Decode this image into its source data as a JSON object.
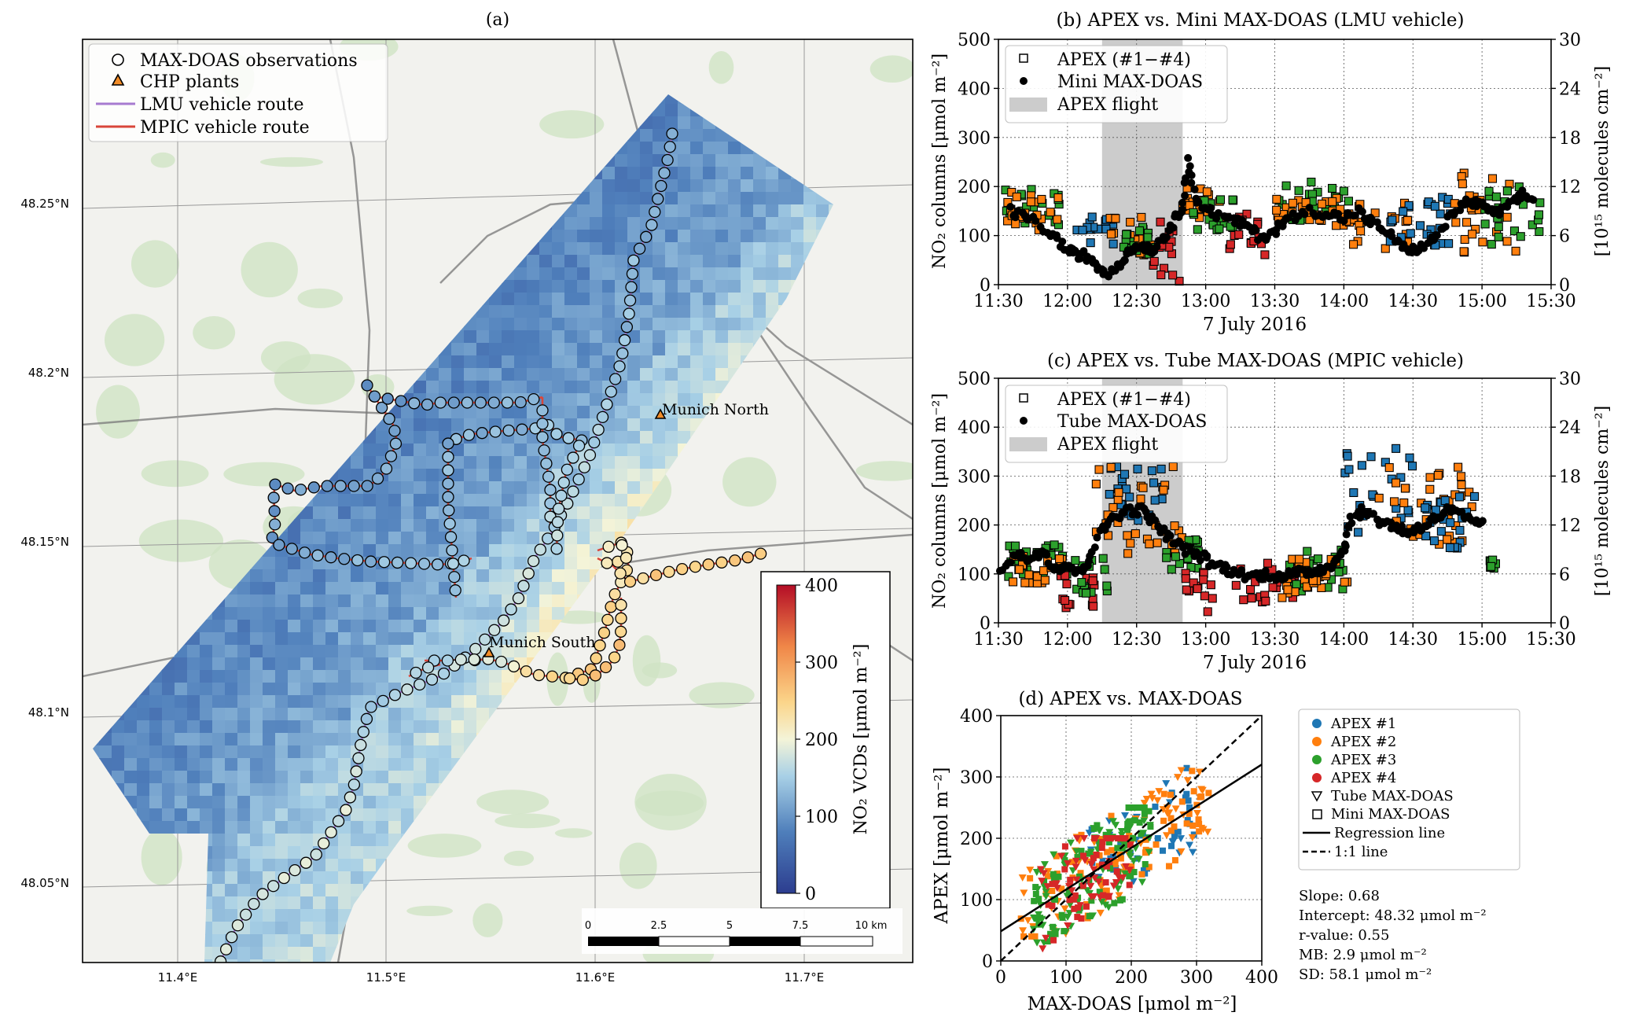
{
  "panel_a": {
    "title": "(a)",
    "legend": {
      "obs": "MAX-DOAS observations",
      "chp": "CHP plants",
      "lmu": "LMU vehicle route",
      "mpic": "MPIC vehicle route"
    },
    "colors": {
      "lmu": "#a77bd0",
      "mpic": "#d9463a",
      "chp": "#f28c28"
    },
    "lat_ticks": [
      "48.25°N",
      "48.2°N",
      "48.15°N",
      "48.1°N",
      "48.05°N"
    ],
    "lon_ticks": [
      "11.4°E",
      "11.5°E",
      "11.6°E",
      "11.7°E"
    ],
    "plants": [
      {
        "label": "Munich North",
        "lon": 11.632,
        "lat": 48.187
      },
      {
        "label": "Munich South",
        "lon": 11.55,
        "lat": 48.118
      }
    ],
    "colorbar": {
      "label": "NO₂ VCDs [μmol m⁻²]",
      "ticks": [
        "0",
        "100",
        "200",
        "300",
        "400"
      ]
    },
    "scalebar": {
      "ticks": [
        "0",
        "2.5",
        "5",
        "7.5",
        "10 km"
      ]
    }
  },
  "panel_b": {
    "title": "(b) APEX vs. Mini MAX-DOAS (LMU vehicle)",
    "ylabel": "NO₂ columns [μmol m⁻²]",
    "ylabel_right": "[10¹⁵ molecules cm⁻²]",
    "xlabel": "7 July 2016",
    "legend": {
      "apex": "APEX (#1−#4)",
      "maxdoas": "Mini MAX-DOAS",
      "flight": "APEX flight"
    }
  },
  "panel_c": {
    "title": "(c) APEX vs. Tube MAX-DOAS (MPIC vehicle)",
    "ylabel": "NO₂ columns [μmol m⁻²]",
    "ylabel_right": "[10¹⁵ molecules cm⁻²]",
    "xlabel": "7 July 2016",
    "legend": {
      "apex": "APEX (#1−#4)",
      "maxdoas": "Tube MAX-DOAS",
      "flight": "APEX flight"
    }
  },
  "panel_d": {
    "title": "(d) APEX vs. MAX-DOAS",
    "xlabel": "MAX-DOAS [μmol m⁻²]",
    "ylabel": "APEX [μmol m⁻²]",
    "legend": [
      "APEX #1",
      "APEX #2",
      "APEX #3",
      "APEX #4",
      "Tube MAX-DOAS",
      "Mini MAX-DOAS",
      "Regression line",
      "1:1 line"
    ],
    "stats": [
      "Slope: 0.68",
      "Intercept: 48.32 μmol m⁻²",
      "r-value: 0.55",
      "MB: 2.9 μmol m⁻²",
      "SD: 58.1 μmol m⁻²"
    ]
  },
  "chart_data": [
    {
      "type": "heatmap",
      "id": "map",
      "lon_range": [
        11.37,
        11.75
      ],
      "lat_range": [
        48.027,
        48.29
      ],
      "value_range": [
        0,
        400
      ]
    },
    {
      "type": "scatter",
      "id": "b",
      "x_ticks": [
        "11:30",
        "12:00",
        "12:30",
        "13:00",
        "13:30",
        "14:00",
        "14:30",
        "15:00",
        "15:30"
      ],
      "x_range_hours": [
        11.5,
        15.5
      ],
      "ylim": [
        0,
        500
      ],
      "y_ticks": [
        0,
        100,
        200,
        300,
        400,
        500
      ],
      "y_right_ticks": [
        0,
        6,
        12,
        18,
        24,
        30
      ],
      "flight_span": [
        "12:15",
        "12:50"
      ],
      "series_maxdoas": {
        "name": "Mini MAX-DOAS",
        "segments": [
          [
            11.58,
            150
          ],
          [
            11.72,
            135
          ],
          [
            11.88,
            105
          ],
          [
            11.98,
            75
          ],
          [
            12.05,
            62
          ],
          [
            12.12,
            60
          ],
          [
            12.2,
            45
          ],
          [
            12.28,
            20
          ],
          [
            12.38,
            45
          ],
          [
            12.45,
            70
          ],
          [
            12.55,
            80
          ],
          [
            12.62,
            70
          ],
          [
            12.7,
            100
          ],
          [
            12.78,
            130
          ],
          [
            12.83,
            160
          ],
          [
            12.88,
            250
          ],
          [
            12.93,
            170
          ],
          [
            13.05,
            145
          ],
          [
            13.2,
            130
          ],
          [
            13.3,
            120
          ],
          [
            13.4,
            95
          ],
          [
            13.5,
            110
          ],
          [
            13.6,
            135
          ],
          [
            13.75,
            150
          ],
          [
            13.9,
            145
          ],
          [
            14.0,
            135
          ],
          [
            14.1,
            150
          ],
          [
            14.2,
            125
          ],
          [
            14.3,
            110
          ],
          [
            14.4,
            80
          ],
          [
            14.5,
            70
          ],
          [
            14.6,
            80
          ],
          [
            14.7,
            110
          ],
          [
            14.8,
            150
          ],
          [
            14.9,
            170
          ],
          [
            15.0,
            160
          ],
          [
            15.1,
            145
          ],
          [
            15.2,
            160
          ],
          [
            15.3,
            185
          ],
          [
            15.38,
            170
          ]
        ],
        "spread": 18
      },
      "series_apex": {
        "name": "APEX (#1−#4)",
        "groups": [
          {
            "color": "#2ca02c",
            "x": [
              11.55,
              11.95
            ],
            "y": [
              120,
              195
            ]
          },
          {
            "color": "#ff7f0e",
            "x": [
              11.55,
              11.95
            ],
            "y": [
              110,
              190
            ]
          },
          {
            "color": "#1f77b4",
            "x": [
              12.05,
              12.35
            ],
            "y": [
              80,
              140
            ]
          },
          {
            "color": "#ff7f0e",
            "x": [
              12.3,
              12.6
            ],
            "y": [
              60,
              140
            ]
          },
          {
            "color": "#2ca02c",
            "x": [
              12.4,
              12.65
            ],
            "y": [
              50,
              120
            ]
          },
          {
            "color": "#d62728",
            "x": [
              12.62,
              12.82
            ],
            "y": [
              5,
              130
            ]
          },
          {
            "color": "#ff7f0e",
            "x": [
              12.8,
              13.1
            ],
            "y": [
              120,
              200
            ]
          },
          {
            "color": "#2ca02c",
            "x": [
              12.9,
              13.2
            ],
            "y": [
              110,
              180
            ]
          },
          {
            "color": "#d62728",
            "x": [
              13.15,
              13.45
            ],
            "y": [
              60,
              150
            ]
          },
          {
            "color": "#2ca02c",
            "x": [
              13.5,
              14.05
            ],
            "y": [
              130,
              210
            ]
          },
          {
            "color": "#ff7f0e",
            "x": [
              13.5,
              14.0
            ],
            "y": [
              120,
              180
            ]
          },
          {
            "color": "#ff7f0e",
            "x": [
              14.0,
              14.5
            ],
            "y": [
              70,
              170
            ]
          },
          {
            "color": "#1f77b4",
            "x": [
              14.3,
              14.8
            ],
            "y": [
              80,
              180
            ]
          },
          {
            "color": "#ff7f0e",
            "x": [
              14.8,
              15.25
            ],
            "y": [
              60,
              230
            ]
          },
          {
            "color": "#2ca02c",
            "x": [
              15.0,
              15.42
            ],
            "y": [
              60,
              200
            ]
          }
        ]
      }
    },
    {
      "type": "scatter",
      "id": "c",
      "x_ticks": [
        "11:30",
        "12:00",
        "12:30",
        "13:00",
        "13:30",
        "14:00",
        "14:30",
        "15:00",
        "15:30"
      ],
      "x_range_hours": [
        11.5,
        15.5
      ],
      "ylim": [
        0,
        500
      ],
      "y_ticks": [
        0,
        100,
        200,
        300,
        400,
        500
      ],
      "y_right_ticks": [
        0,
        6,
        12,
        18,
        24,
        30
      ],
      "flight_span": [
        "12:15",
        "12:50"
      ],
      "series_maxdoas": {
        "name": "Tube MAX-DOAS",
        "segments": [
          [
            11.52,
            110
          ],
          [
            11.62,
            140
          ],
          [
            11.72,
            130
          ],
          [
            11.82,
            150
          ],
          [
            11.92,
            110
          ],
          [
            12.0,
            120
          ],
          [
            12.08,
            100
          ],
          [
            12.15,
            130
          ],
          [
            12.25,
            190
          ],
          [
            12.35,
            220
          ],
          [
            12.45,
            230
          ],
          [
            12.55,
            230
          ],
          [
            12.65,
            200
          ],
          [
            12.75,
            170
          ],
          [
            12.85,
            150
          ],
          [
            12.95,
            140
          ],
          [
            13.05,
            120
          ],
          [
            13.15,
            110
          ],
          [
            13.25,
            100
          ],
          [
            13.35,
            95
          ],
          [
            13.45,
            100
          ],
          [
            13.55,
            95
          ],
          [
            13.65,
            100
          ],
          [
            13.75,
            105
          ],
          [
            13.85,
            110
          ],
          [
            13.95,
            130
          ],
          [
            14.0,
            150
          ],
          [
            14.05,
            210
          ],
          [
            14.15,
            230
          ],
          [
            14.25,
            210
          ],
          [
            14.35,
            200
          ],
          [
            14.45,
            185
          ],
          [
            14.55,
            195
          ],
          [
            14.65,
            210
          ],
          [
            14.75,
            230
          ],
          [
            14.85,
            220
          ],
          [
            14.95,
            200
          ],
          [
            15.02,
            210
          ]
        ],
        "spread": 20
      },
      "series_apex": {
        "name": "APEX (#1−#4)",
        "groups": [
          {
            "color": "#2ca02c",
            "x": [
              11.55,
              12.0
            ],
            "y": [
              90,
              160
            ]
          },
          {
            "color": "#ff7f0e",
            "x": [
              11.6,
              12.0
            ],
            "y": [
              80,
              140
            ]
          },
          {
            "color": "#d62728",
            "x": [
              11.95,
              12.2
            ],
            "y": [
              30,
              110
            ]
          },
          {
            "color": "#2ca02c",
            "x": [
              12.05,
              12.3
            ],
            "y": [
              60,
              140
            ]
          },
          {
            "color": "#1f77b4",
            "x": [
              12.3,
              12.7
            ],
            "y": [
              200,
              320
            ]
          },
          {
            "color": "#ff7f0e",
            "x": [
              12.2,
              12.85
            ],
            "y": [
              140,
              330
            ]
          },
          {
            "color": "#2ca02c",
            "x": [
              12.7,
              12.95
            ],
            "y": [
              100,
              180
            ]
          },
          {
            "color": "#d62728",
            "x": [
              12.85,
              13.05
            ],
            "y": [
              10,
              110
            ]
          },
          {
            "color": "#d62728",
            "x": [
              13.2,
              13.65
            ],
            "y": [
              40,
              130
            ]
          },
          {
            "color": "#2ca02c",
            "x": [
              13.6,
              14.0
            ],
            "y": [
              60,
              150
            ]
          },
          {
            "color": "#ff7f0e",
            "x": [
              13.55,
              14.05
            ],
            "y": [
              50,
              140
            ]
          },
          {
            "color": "#1f77b4",
            "x": [
              14.0,
              14.5
            ],
            "y": [
              180,
              360
            ]
          },
          {
            "color": "#ff7f0e",
            "x": [
              14.2,
              14.95
            ],
            "y": [
              150,
              320
            ]
          },
          {
            "color": "#1f77b4",
            "x": [
              14.55,
              14.95
            ],
            "y": [
              150,
              260
            ]
          },
          {
            "color": "#2ca02c",
            "x": [
              15.05,
              15.1
            ],
            "y": [
              110,
              130
            ]
          }
        ]
      }
    },
    {
      "type": "scatter",
      "id": "d",
      "xlim": [
        0,
        400
      ],
      "ylim": [
        0,
        400
      ],
      "x_ticks": [
        0,
        100,
        200,
        300,
        400
      ],
      "y_ticks": [
        0,
        100,
        200,
        300,
        400
      ],
      "regression": {
        "slope": 0.68,
        "intercept": 48.32
      },
      "series": [
        {
          "name": "APEX #1",
          "color": "#1f77b4",
          "cx": [
            130,
            300
          ],
          "cy": [
            130,
            340
          ],
          "n": 60
        },
        {
          "name": "APEX #2",
          "color": "#ff7f0e",
          "cx": [
            30,
            320
          ],
          "cy": [
            40,
            330
          ],
          "n": 130
        },
        {
          "name": "APEX #3",
          "color": "#2ca02c",
          "cx": [
            50,
            230
          ],
          "cy": [
            30,
            250
          ],
          "n": 150
        },
        {
          "name": "APEX #4",
          "color": "#d62728",
          "cx": [
            60,
            200
          ],
          "cy": [
            10,
            200
          ],
          "n": 80
        }
      ]
    }
  ]
}
